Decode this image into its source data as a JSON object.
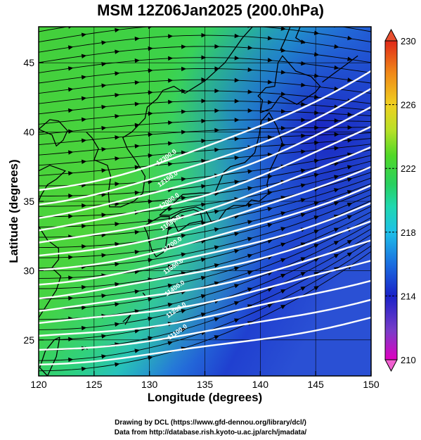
{
  "title": "MSM 12Z06Jan2025 (200.0hPa)",
  "axes": {
    "xlabel": "Longitude (degrees)",
    "ylabel": "Latitude  (degrees)",
    "xticks": [
      120,
      125,
      130,
      135,
      140,
      145,
      150
    ],
    "yticks": [
      25,
      30,
      35,
      40,
      45
    ],
    "xlim": [
      120,
      150
    ],
    "ylim": [
      22.4,
      47.6
    ]
  },
  "colorbar": {
    "ticks": [
      210,
      214,
      218,
      222,
      226,
      230
    ],
    "range": [
      210,
      230
    ],
    "colors": [
      "#e000c0",
      "#7a3cc8",
      "#1a22c8",
      "#1a6ee0",
      "#1ec0e8",
      "#20d8b0",
      "#28d060",
      "#50d828",
      "#b8e028",
      "#f0d020",
      "#f08818",
      "#e02818"
    ]
  },
  "contours": {
    "labels": [
      "12300.0",
      "12150.0",
      "12000.0",
      "11850.0",
      "11700.0",
      "11550.0",
      "11400.0",
      "11250.0",
      "11100.0"
    ]
  },
  "credits": {
    "line1": "Drawing by DCL (https://www.gfd-dennou.org/library/dcl/)",
    "line2": "Data from http://database.rish.kyoto-u.ac.jp/arch/jmadata/"
  },
  "colors": {
    "background_field": "#3cd23c",
    "contour_line": "#ffffff",
    "vector": "#000000",
    "coast": "#000000"
  }
}
